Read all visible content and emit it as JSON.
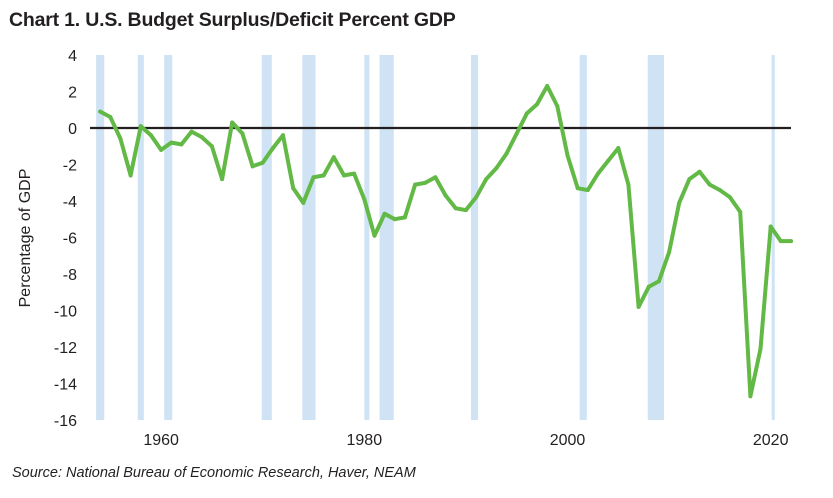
{
  "title": "Chart 1. U.S. Budget Surplus/Deficit Percent GDP",
  "source": "Source: National Bureau of Economic Research, Haver, NEAM",
  "colors": {
    "line": "#62b946",
    "recession": "#cfe3f5",
    "zero_line": "#231f20"
  },
  "chart_data": {
    "type": "line",
    "title": "Chart 1. U.S. Budget Surplus/Deficit Percent GDP",
    "xlabel": "",
    "ylabel": "Percentage of GDP",
    "xlim": [
      1953,
      2022
    ],
    "ylim": [
      -16,
      4
    ],
    "yticks": [
      4,
      2,
      0,
      -2,
      -4,
      -6,
      -8,
      -10,
      -12,
      -14,
      -16
    ],
    "xticks": [
      1960,
      1980,
      2000,
      2020
    ],
    "recessions": [
      [
        1953.6,
        1954.4
      ],
      [
        1957.7,
        1958.3
      ],
      [
        1960.3,
        1961.1
      ],
      [
        1969.9,
        1970.9
      ],
      [
        1973.9,
        1975.2
      ],
      [
        1980.0,
        1980.5
      ],
      [
        1981.5,
        1982.9
      ],
      [
        1990.5,
        1991.2
      ],
      [
        2001.2,
        2001.9
      ],
      [
        2007.9,
        2009.5
      ],
      [
        2020.1,
        2020.4
      ]
    ],
    "series": [
      {
        "name": "Budget Surplus/Deficit (% of GDP)",
        "x": [
          1954,
          1955,
          1956,
          1957,
          1958,
          1959,
          1960,
          1961,
          1962,
          1963,
          1964,
          1965,
          1966,
          1967,
          1968,
          1969,
          1970,
          1971,
          1972,
          1973,
          1974,
          1975,
          1976,
          1977,
          1978,
          1979,
          1980,
          1981,
          1982,
          1983,
          1984,
          1985,
          1986,
          1987,
          1988,
          1989,
          1990,
          1991,
          1992,
          1993,
          1994,
          1995,
          1996,
          1997,
          1998,
          1999,
          2000,
          2001,
          2002,
          2003,
          2004,
          2005,
          2006,
          2007,
          2008,
          2009,
          2010,
          2011,
          2012,
          2013,
          2014,
          2015,
          2016,
          2017,
          2018,
          2019,
          2020,
          2021,
          2022
        ],
        "values": [
          0.9,
          0.6,
          -0.6,
          -2.6,
          0.1,
          -0.4,
          -1.2,
          -0.8,
          -0.9,
          -0.2,
          -0.5,
          -1.0,
          -2.8,
          0.3,
          -0.3,
          -2.1,
          -1.9,
          -1.1,
          -0.4,
          -3.3,
          -4.1,
          -2.7,
          -2.6,
          -1.6,
          -2.6,
          -2.5,
          -3.9,
          -5.9,
          -4.7,
          -5.0,
          -4.9,
          -3.1,
          -3.0,
          -2.7,
          -3.7,
          -4.4,
          -4.5,
          -3.8,
          -2.8,
          -2.2,
          -1.4,
          -0.3,
          0.8,
          1.3,
          2.3,
          1.2,
          -1.5,
          -3.3,
          -3.4,
          -2.5,
          -1.8,
          -1.1,
          -3.1,
          -9.8,
          -8.7,
          -8.4,
          -6.8,
          -4.1,
          -2.8,
          -2.4,
          -3.1,
          -3.4,
          -3.8,
          -4.6,
          -14.7,
          -12.1,
          -5.4,
          -6.2,
          -6.2
        ]
      }
    ]
  }
}
